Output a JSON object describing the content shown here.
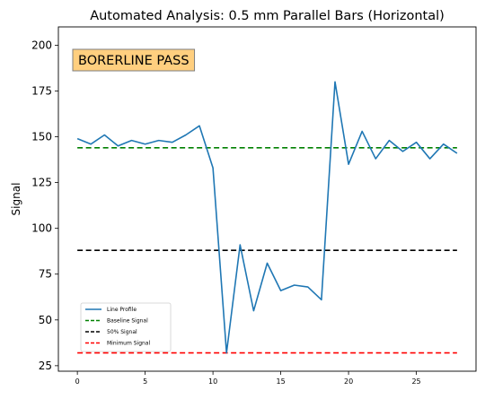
{
  "chart_data": {
    "type": "line",
    "title": "Automated Analysis: 0.5 mm Parallel Bars (Horizontal)",
    "xlabel": "",
    "ylabel": "Signal",
    "xlim": [
      -1.4,
      29.4
    ],
    "ylim": [
      22,
      210
    ],
    "xticks": [
      0,
      5,
      10,
      15,
      20,
      25
    ],
    "yticks": [
      25,
      50,
      75,
      100,
      125,
      150,
      175,
      200
    ],
    "grid": false,
    "legend_position": "lower-left",
    "annotation": "BORERLINE PASS",
    "series": [
      {
        "name": "Line Profile",
        "kind": "line",
        "color": "#1f77b4",
        "x": [
          0,
          1,
          2,
          3,
          4,
          5,
          6,
          7,
          8,
          9,
          10,
          11,
          12,
          13,
          14,
          15,
          16,
          17,
          18,
          19,
          20,
          21,
          22,
          23,
          24,
          25,
          26,
          27,
          28
        ],
        "y": [
          149,
          146,
          151,
          145,
          148,
          146,
          148,
          147,
          151,
          156,
          133,
          32,
          91,
          55,
          81,
          66,
          69,
          68,
          61,
          180,
          135,
          153,
          138,
          148,
          142,
          147,
          138,
          146,
          141
        ]
      },
      {
        "name": "Baseline Signal",
        "kind": "hline",
        "color": "#008000",
        "y": 144,
        "x_range": [
          0,
          28
        ]
      },
      {
        "name": "50% Signal",
        "kind": "hline",
        "color": "#000000",
        "y": 88,
        "x_range": [
          0,
          28
        ]
      },
      {
        "name": "Minimum Signal",
        "kind": "hline",
        "color": "#ff0000",
        "y": 32,
        "x_range": [
          0,
          28
        ]
      }
    ]
  }
}
